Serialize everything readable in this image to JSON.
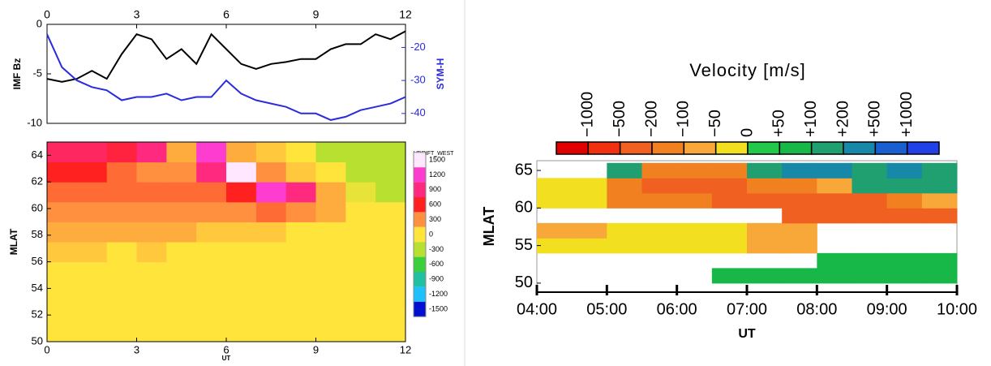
{
  "chart_data": [
    {
      "type": "line",
      "ylabel": "IMF Bz",
      "y2label": "SYM-H",
      "x": [
        0,
        0.5,
        1,
        1.5,
        2,
        2.5,
        3,
        3.5,
        4,
        4.5,
        5,
        5.5,
        6,
        6.5,
        7,
        7.5,
        8,
        8.5,
        9,
        9.5,
        10,
        10.5,
        11,
        11.5,
        12
      ],
      "series": [
        {
          "name": "IMF Bz",
          "color": "#000000",
          "values": [
            -5.5,
            -5.8,
            -5.5,
            -4.7,
            -5.5,
            -3,
            -1,
            -1.5,
            -3.5,
            -2.5,
            -4,
            -1,
            -2.5,
            -4,
            -4.5,
            -4,
            -3.8,
            -3.5,
            -3.5,
            -2.5,
            -2,
            -2,
            -1,
            -1.5,
            -0.7
          ]
        },
        {
          "name": "SYM-H",
          "color": "#2a2ae0",
          "axis": "y2",
          "values": [
            -16,
            -26,
            -30,
            -32,
            -33,
            -36,
            -35,
            -35,
            -34,
            -36,
            -35,
            -35,
            -30,
            -34,
            -36,
            -37,
            -38,
            -40,
            -40,
            -42,
            -41,
            -39,
            -38,
            -37,
            -35
          ]
        }
      ],
      "xlim": [
        0,
        12
      ],
      "xticks": [
        0,
        3,
        6,
        9,
        12
      ],
      "ylim": [
        -10,
        0
      ],
      "yticks": [
        0,
        -5,
        -10
      ],
      "y2lim": [
        -43,
        -13
      ],
      "y2ticks": [
        -20,
        -30,
        -40
      ]
    },
    {
      "type": "heatmap",
      "xlabel": "UT",
      "ylabel": "MLAT",
      "xbins": [
        0,
        1,
        2,
        3,
        4,
        5,
        6,
        7,
        8,
        9,
        10,
        11,
        12
      ],
      "ybins": [
        50,
        51.5,
        53,
        54.5,
        56,
        57.5,
        59,
        60.5,
        62,
        63.5,
        65
      ],
      "z": [
        [
          0,
          0,
          0,
          0,
          0,
          0,
          0,
          0,
          0,
          0,
          0,
          0
        ],
        [
          0,
          0,
          0,
          0,
          0,
          0,
          0,
          0,
          0,
          0,
          0,
          0
        ],
        [
          0,
          0,
          0,
          0,
          0,
          0,
          0,
          0,
          0,
          0,
          0,
          0
        ],
        [
          0,
          0,
          0,
          0,
          0,
          0,
          0,
          0,
          0,
          0,
          0,
          0
        ],
        [
          100,
          100,
          0,
          100,
          0,
          0,
          0,
          0,
          0,
          0,
          0,
          0
        ],
        [
          200,
          200,
          200,
          200,
          200,
          100,
          100,
          100,
          0,
          0,
          0,
          0
        ],
        [
          300,
          300,
          300,
          300,
          300,
          300,
          300,
          400,
          300,
          200,
          0,
          0
        ],
        [
          400,
          400,
          400,
          400,
          400,
          400,
          600,
          1200,
          900,
          200,
          -100,
          -300
        ],
        [
          600,
          600,
          400,
          300,
          300,
          900,
          1500,
          300,
          100,
          0,
          -300,
          -300
        ],
        [
          800,
          800,
          700,
          900,
          200,
          1200,
          200,
          100,
          0,
          -300,
          -300,
          -300
        ]
      ],
      "xlim": [
        0,
        12
      ],
      "xticks": [
        0,
        3,
        6,
        9,
        12
      ],
      "ylim": [
        50,
        65
      ],
      "yticks": [
        50,
        52,
        54,
        56,
        58,
        60,
        62,
        64
      ],
      "colorbar": {
        "title": "VDRIFT_WEST",
        "ticks": [
          1500,
          1200,
          900,
          600,
          300,
          0,
          -300,
          -600,
          -900,
          -1200,
          -1500
        ]
      },
      "colorscale": [
        [
          1500,
          "#ffe8ff"
        ],
        [
          1200,
          "#ff3cd0"
        ],
        [
          900,
          "#ff2a80"
        ],
        [
          600,
          "#ff2020"
        ],
        [
          300,
          "#ff9040"
        ],
        [
          0,
          "#ffe43c"
        ],
        [
          -300,
          "#b8e030"
        ],
        [
          -600,
          "#3ccf3c"
        ],
        [
          -900,
          "#20c0a0"
        ],
        [
          -1200,
          "#20c0ff"
        ],
        [
          -1500,
          "#0010d0"
        ]
      ]
    },
    {
      "type": "heatmap",
      "xlabel": "UT",
      "ylabel": "MLAT",
      "xbins": [
        4,
        4.5,
        5,
        5.5,
        6,
        6.5,
        7,
        7.5,
        8,
        8.5,
        9,
        9.5,
        10
      ],
      "ybins": [
        50,
        52,
        54,
        56,
        58,
        60,
        62,
        64,
        66
      ],
      "z": [
        [
          null,
          null,
          null,
          null,
          null,
          50,
          50,
          50,
          50,
          50,
          50,
          50
        ],
        [
          null,
          null,
          null,
          null,
          null,
          null,
          null,
          null,
          50,
          50,
          50,
          50
        ],
        [
          -50,
          -50,
          -50,
          -50,
          -50,
          -50,
          -100,
          -100,
          null,
          null,
          null,
          null
        ],
        [
          -100,
          -100,
          -50,
          -50,
          -50,
          -50,
          -100,
          -100,
          null,
          null,
          null,
          null
        ],
        [
          null,
          null,
          null,
          null,
          null,
          null,
          null,
          -300,
          -300,
          -500,
          -500,
          -500
        ],
        [
          -50,
          -50,
          -200,
          -200,
          -200,
          -300,
          -300,
          -500,
          -500,
          -500,
          -200,
          -100
        ],
        [
          -50,
          -50,
          -200,
          -500,
          -500,
          -300,
          -200,
          -200,
          -100,
          100,
          100,
          100
        ],
        [
          null,
          null,
          100,
          -200,
          -200,
          -200,
          100,
          200,
          200,
          100,
          200,
          100
        ]
      ],
      "xlim": [
        4,
        10
      ],
      "xticks": [
        {
          "value": 4,
          "label": "04:00"
        },
        {
          "value": 5,
          "label": "05:00"
        },
        {
          "value": 6,
          "label": "06:00"
        },
        {
          "value": 7,
          "label": "07:00"
        },
        {
          "value": 8,
          "label": "08:00"
        },
        {
          "value": 9,
          "label": "09:00"
        },
        {
          "value": 10,
          "label": "10:00"
        }
      ],
      "ylim": [
        48.8,
        66.3
      ],
      "yticks": [
        50,
        55,
        60,
        65
      ],
      "colorbar": {
        "title": "Velocity [m/s]",
        "ticks": [
          {
            "value": -1000,
            "label": "−1000"
          },
          {
            "value": -500,
            "label": "−500"
          },
          {
            "value": -200,
            "label": "−200"
          },
          {
            "value": -100,
            "label": "−100"
          },
          {
            "value": -50,
            "label": "−50"
          },
          {
            "value": 0,
            "label": "0"
          },
          {
            "value": 50,
            "label": "+50"
          },
          {
            "value": 100,
            "label": "+100"
          },
          {
            "value": 200,
            "label": "+200"
          },
          {
            "value": 500,
            "label": "+500"
          },
          {
            "value": 1000,
            "label": "+1000"
          }
        ],
        "colors": [
          "#e00000",
          "#f03010",
          "#f06020",
          "#f08020",
          "#f8a838",
          "#f2e020",
          "#22c84a",
          "#18b848",
          "#20a070",
          "#1888a8",
          "#1a5fd0",
          "#2040e8"
        ]
      }
    }
  ]
}
